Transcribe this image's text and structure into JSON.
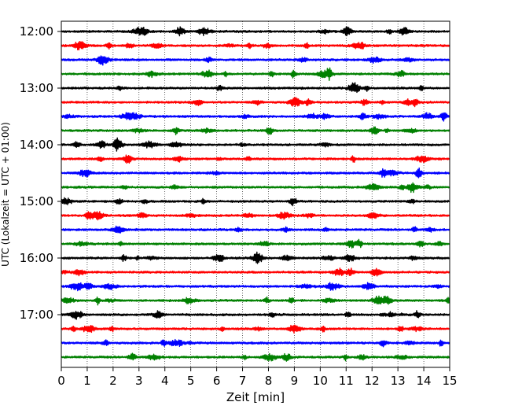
{
  "chart_data": {
    "type": "line",
    "title": "",
    "xlabel": "Zeit  [min]",
    "ylabel": "UTC (Lokalzeit = UTC + 01:00)",
    "xlim": [
      0,
      15
    ],
    "x_ticks": [
      "0",
      "1",
      "2",
      "3",
      "4",
      "5",
      "6",
      "7",
      "8",
      "9",
      "10",
      "11",
      "12",
      "13",
      "14",
      "15"
    ],
    "y_time_range_minutes": [
      720,
      1080
    ],
    "y_tick_labels": [
      {
        "label": "12:00",
        "minutes": 720
      },
      {
        "label": "13:00",
        "minutes": 780
      },
      {
        "label": "14:00",
        "minutes": 840
      },
      {
        "label": "15:00",
        "minutes": 900
      },
      {
        "label": "16:00",
        "minutes": 960
      },
      {
        "label": "17:00",
        "minutes": 1020
      }
    ],
    "grid": "vertical dotted lines at each minute",
    "row_colors": [
      "#000000",
      "#ff0000",
      "#0000ff",
      "#008000"
    ],
    "series": [
      {
        "start_minutes": 720,
        "color": "#000000"
      },
      {
        "start_minutes": 735,
        "color": "#ff0000"
      },
      {
        "start_minutes": 750,
        "color": "#0000ff"
      },
      {
        "start_minutes": 765,
        "color": "#008000"
      },
      {
        "start_minutes": 780,
        "color": "#000000"
      },
      {
        "start_minutes": 795,
        "color": "#ff0000"
      },
      {
        "start_minutes": 810,
        "color": "#0000ff"
      },
      {
        "start_minutes": 825,
        "color": "#008000"
      },
      {
        "start_minutes": 840,
        "color": "#000000"
      },
      {
        "start_minutes": 855,
        "color": "#ff0000"
      },
      {
        "start_minutes": 870,
        "color": "#0000ff"
      },
      {
        "start_minutes": 885,
        "color": "#008000"
      },
      {
        "start_minutes": 900,
        "color": "#000000"
      },
      {
        "start_minutes": 915,
        "color": "#ff0000"
      },
      {
        "start_minutes": 930,
        "color": "#0000ff"
      },
      {
        "start_minutes": 945,
        "color": "#008000"
      },
      {
        "start_minutes": 960,
        "color": "#000000"
      },
      {
        "start_minutes": 975,
        "color": "#ff0000"
      },
      {
        "start_minutes": 990,
        "color": "#0000ff"
      },
      {
        "start_minutes": 1005,
        "color": "#008000"
      },
      {
        "start_minutes": 1020,
        "color": "#000000"
      },
      {
        "start_minutes": 1035,
        "color": "#ff0000"
      },
      {
        "start_minutes": 1050,
        "color": "#0000ff"
      },
      {
        "start_minutes": 1065,
        "color": "#008000"
      }
    ]
  }
}
